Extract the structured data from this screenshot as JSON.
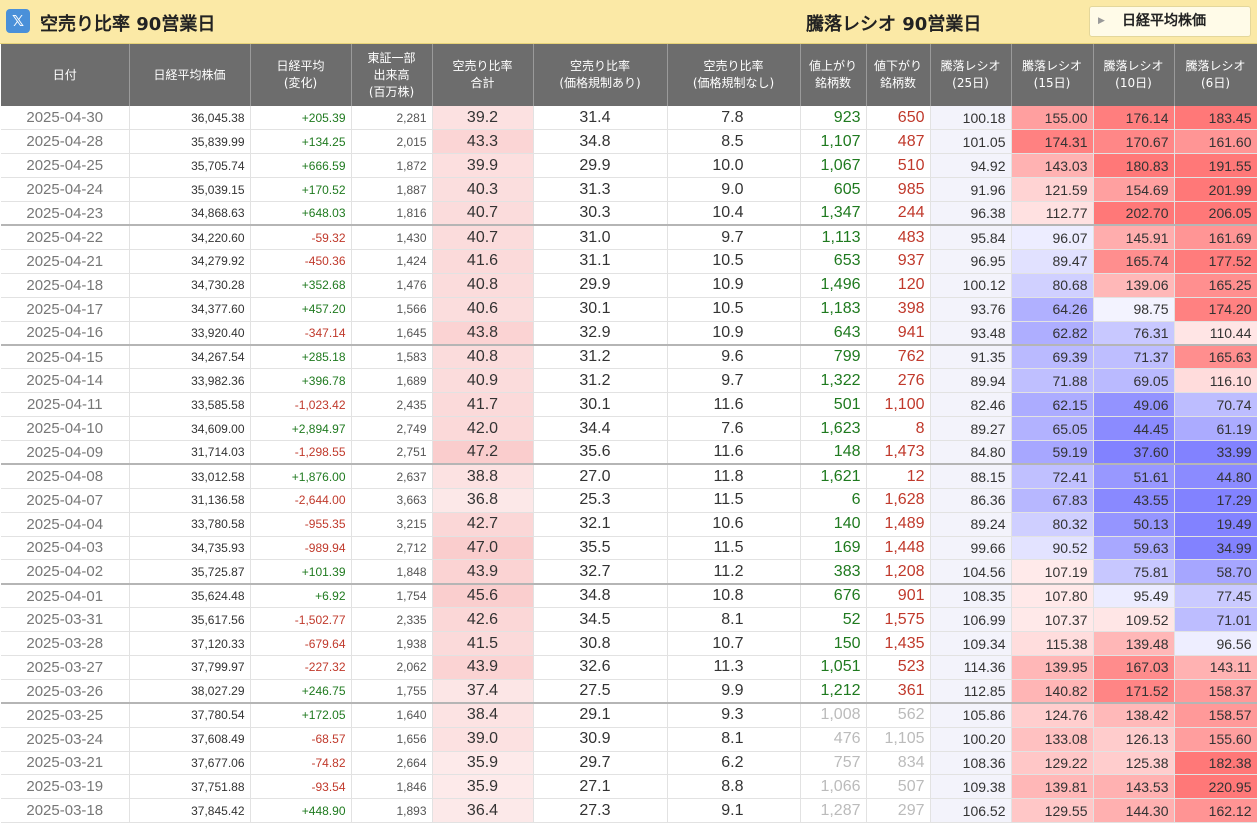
{
  "header": {
    "x_icon": "x-logo-icon",
    "title": "空売り比率 90営業日",
    "right_title": "騰落レシオ 90営業日",
    "nikkei_button": "日経平均株価"
  },
  "columns": [
    "日付",
    "日経平均株価",
    "日経平均\n(変化)",
    "東証一部\n出来高\n(百万株)",
    "空売り比率\n合計",
    "空売り比率\n(価格規制あり)",
    "空売り比率\n(価格規制なし)",
    "値上がり\n銘柄数",
    "値下がり\n銘柄数",
    "騰落レシオ\n(25日)",
    "騰落レシオ\n(15日)",
    "騰落レシオ\n(10日)",
    "騰落レシオ\n(6日)"
  ],
  "rows": [
    {
      "date": "2025-04-30",
      "nikkei": "36,045.38",
      "change": "+205.39",
      "volume": "2,281",
      "total": "39.2",
      "reg": "31.4",
      "noreg": "7.8",
      "adv": "923",
      "dec": "650",
      "r25": "100.18",
      "r15": "155.00",
      "r10": "176.14",
      "r6": "183.45"
    },
    {
      "date": "2025-04-28",
      "nikkei": "35,839.99",
      "change": "+134.25",
      "volume": "2,015",
      "total": "43.3",
      "reg": "34.8",
      "noreg": "8.5",
      "adv": "1,107",
      "dec": "487",
      "r25": "101.05",
      "r15": "174.31",
      "r10": "170.67",
      "r6": "161.60"
    },
    {
      "date": "2025-04-25",
      "nikkei": "35,705.74",
      "change": "+666.59",
      "volume": "1,872",
      "total": "39.9",
      "reg": "29.9",
      "noreg": "10.0",
      "adv": "1,067",
      "dec": "510",
      "r25": "94.92",
      "r15": "143.03",
      "r10": "180.83",
      "r6": "191.55"
    },
    {
      "date": "2025-04-24",
      "nikkei": "35,039.15",
      "change": "+170.52",
      "volume": "1,887",
      "total": "40.3",
      "reg": "31.3",
      "noreg": "9.0",
      "adv": "605",
      "dec": "985",
      "r25": "91.96",
      "r15": "121.59",
      "r10": "154.69",
      "r6": "201.99"
    },
    {
      "date": "2025-04-23",
      "nikkei": "34,868.63",
      "change": "+648.03",
      "volume": "1,816",
      "total": "40.7",
      "reg": "30.3",
      "noreg": "10.4",
      "adv": "1,347",
      "dec": "244",
      "r25": "96.38",
      "r15": "112.77",
      "r10": "202.70",
      "r6": "206.05"
    },
    {
      "date": "2025-04-22",
      "nikkei": "34,220.60",
      "change": "-59.32",
      "volume": "1,430",
      "total": "40.7",
      "reg": "31.0",
      "noreg": "9.7",
      "adv": "1,113",
      "dec": "483",
      "r25": "95.84",
      "r15": "96.07",
      "r10": "145.91",
      "r6": "161.69"
    },
    {
      "date": "2025-04-21",
      "nikkei": "34,279.92",
      "change": "-450.36",
      "volume": "1,424",
      "total": "41.6",
      "reg": "31.1",
      "noreg": "10.5",
      "adv": "653",
      "dec": "937",
      "r25": "96.95",
      "r15": "89.47",
      "r10": "165.74",
      "r6": "177.52"
    },
    {
      "date": "2025-04-18",
      "nikkei": "34,730.28",
      "change": "+352.68",
      "volume": "1,476",
      "total": "40.8",
      "reg": "29.9",
      "noreg": "10.9",
      "adv": "1,496",
      "dec": "120",
      "r25": "100.12",
      "r15": "80.68",
      "r10": "139.06",
      "r6": "165.25"
    },
    {
      "date": "2025-04-17",
      "nikkei": "34,377.60",
      "change": "+457.20",
      "volume": "1,566",
      "total": "40.6",
      "reg": "30.1",
      "noreg": "10.5",
      "adv": "1,183",
      "dec": "398",
      "r25": "93.76",
      "r15": "64.26",
      "r10": "98.75",
      "r6": "174.20"
    },
    {
      "date": "2025-04-16",
      "nikkei": "33,920.40",
      "change": "-347.14",
      "volume": "1,645",
      "total": "43.8",
      "reg": "32.9",
      "noreg": "10.9",
      "adv": "643",
      "dec": "941",
      "r25": "93.48",
      "r15": "62.82",
      "r10": "76.31",
      "r6": "110.44"
    },
    {
      "date": "2025-04-15",
      "nikkei": "34,267.54",
      "change": "+285.18",
      "volume": "1,583",
      "total": "40.8",
      "reg": "31.2",
      "noreg": "9.6",
      "adv": "799",
      "dec": "762",
      "r25": "91.35",
      "r15": "69.39",
      "r10": "71.37",
      "r6": "165.63"
    },
    {
      "date": "2025-04-14",
      "nikkei": "33,982.36",
      "change": "+396.78",
      "volume": "1,689",
      "total": "40.9",
      "reg": "31.2",
      "noreg": "9.7",
      "adv": "1,322",
      "dec": "276",
      "r25": "89.94",
      "r15": "71.88",
      "r10": "69.05",
      "r6": "116.10"
    },
    {
      "date": "2025-04-11",
      "nikkei": "33,585.58",
      "change": "-1,023.42",
      "volume": "2,435",
      "total": "41.7",
      "reg": "30.1",
      "noreg": "11.6",
      "adv": "501",
      "dec": "1,100",
      "r25": "82.46",
      "r15": "62.15",
      "r10": "49.06",
      "r6": "70.74"
    },
    {
      "date": "2025-04-10",
      "nikkei": "34,609.00",
      "change": "+2,894.97",
      "volume": "2,749",
      "total": "42.0",
      "reg": "34.4",
      "noreg": "7.6",
      "adv": "1,623",
      "dec": "8",
      "r25": "89.27",
      "r15": "65.05",
      "r10": "44.45",
      "r6": "61.19"
    },
    {
      "date": "2025-04-09",
      "nikkei": "31,714.03",
      "change": "-1,298.55",
      "volume": "2,751",
      "total": "47.2",
      "reg": "35.6",
      "noreg": "11.6",
      "adv": "148",
      "dec": "1,473",
      "r25": "84.80",
      "r15": "59.19",
      "r10": "37.60",
      "r6": "33.99"
    },
    {
      "date": "2025-04-08",
      "nikkei": "33,012.58",
      "change": "+1,876.00",
      "volume": "2,637",
      "total": "38.8",
      "reg": "27.0",
      "noreg": "11.8",
      "adv": "1,621",
      "dec": "12",
      "r25": "88.15",
      "r15": "72.41",
      "r10": "51.61",
      "r6": "44.80"
    },
    {
      "date": "2025-04-07",
      "nikkei": "31,136.58",
      "change": "-2,644.00",
      "volume": "3,663",
      "total": "36.8",
      "reg": "25.3",
      "noreg": "11.5",
      "adv": "6",
      "dec": "1,628",
      "r25": "86.36",
      "r15": "67.83",
      "r10": "43.55",
      "r6": "17.29"
    },
    {
      "date": "2025-04-04",
      "nikkei": "33,780.58",
      "change": "-955.35",
      "volume": "3,215",
      "total": "42.7",
      "reg": "32.1",
      "noreg": "10.6",
      "adv": "140",
      "dec": "1,489",
      "r25": "89.24",
      "r15": "80.32",
      "r10": "50.13",
      "r6": "19.49"
    },
    {
      "date": "2025-04-03",
      "nikkei": "34,735.93",
      "change": "-989.94",
      "volume": "2,712",
      "total": "47.0",
      "reg": "35.5",
      "noreg": "11.5",
      "adv": "169",
      "dec": "1,448",
      "r25": "99.66",
      "r15": "90.52",
      "r10": "59.63",
      "r6": "34.99"
    },
    {
      "date": "2025-04-02",
      "nikkei": "35,725.87",
      "change": "+101.39",
      "volume": "1,848",
      "total": "43.9",
      "reg": "32.7",
      "noreg": "11.2",
      "adv": "383",
      "dec": "1,208",
      "r25": "104.56",
      "r15": "107.19",
      "r10": "75.81",
      "r6": "58.70"
    },
    {
      "date": "2025-04-01",
      "nikkei": "35,624.48",
      "change": "+6.92",
      "volume": "1,754",
      "total": "45.6",
      "reg": "34.8",
      "noreg": "10.8",
      "adv": "676",
      "dec": "901",
      "r25": "108.35",
      "r15": "107.80",
      "r10": "95.49",
      "r6": "77.45"
    },
    {
      "date": "2025-03-31",
      "nikkei": "35,617.56",
      "change": "-1,502.77",
      "volume": "2,335",
      "total": "42.6",
      "reg": "34.5",
      "noreg": "8.1",
      "adv": "52",
      "dec": "1,575",
      "r25": "106.99",
      "r15": "107.37",
      "r10": "109.52",
      "r6": "71.01"
    },
    {
      "date": "2025-03-28",
      "nikkei": "37,120.33",
      "change": "-679.64",
      "volume": "1,938",
      "total": "41.5",
      "reg": "30.8",
      "noreg": "10.7",
      "adv": "150",
      "dec": "1,435",
      "r25": "109.34",
      "r15": "115.38",
      "r10": "139.48",
      "r6": "96.56"
    },
    {
      "date": "2025-03-27",
      "nikkei": "37,799.97",
      "change": "-227.32",
      "volume": "2,062",
      "total": "43.9",
      "reg": "32.6",
      "noreg": "11.3",
      "adv": "1,051",
      "dec": "523",
      "r25": "114.36",
      "r15": "139.95",
      "r10": "167.03",
      "r6": "143.11"
    },
    {
      "date": "2025-03-26",
      "nikkei": "38,027.29",
      "change": "+246.75",
      "volume": "1,755",
      "total": "37.4",
      "reg": "27.5",
      "noreg": "9.9",
      "adv": "1,212",
      "dec": "361",
      "r25": "112.85",
      "r15": "140.82",
      "r10": "171.52",
      "r6": "158.37"
    },
    {
      "date": "2025-03-25",
      "nikkei": "37,780.54",
      "change": "+172.05",
      "volume": "1,640",
      "total": "38.4",
      "reg": "29.1",
      "noreg": "9.3",
      "adv": "1,008",
      "dec": "562",
      "r25": "105.86",
      "r15": "124.76",
      "r10": "138.42",
      "r6": "158.57"
    },
    {
      "date": "2025-03-24",
      "nikkei": "37,608.49",
      "change": "-68.57",
      "volume": "1,656",
      "total": "39.0",
      "reg": "30.9",
      "noreg": "8.1",
      "adv": "476",
      "dec": "1,105",
      "r25": "100.20",
      "r15": "133.08",
      "r10": "126.13",
      "r6": "155.60"
    },
    {
      "date": "2025-03-21",
      "nikkei": "37,677.06",
      "change": "-74.82",
      "volume": "2,664",
      "total": "35.9",
      "reg": "29.7",
      "noreg": "6.2",
      "adv": "757",
      "dec": "834",
      "r25": "108.36",
      "r15": "129.22",
      "r10": "125.38",
      "r6": "182.38"
    },
    {
      "date": "2025-03-19",
      "nikkei": "37,751.88",
      "change": "-93.54",
      "volume": "1,846",
      "total": "35.9",
      "reg": "27.1",
      "noreg": "8.8",
      "adv": "1,066",
      "dec": "507",
      "r25": "109.38",
      "r15": "139.81",
      "r10": "143.53",
      "r6": "220.95"
    },
    {
      "date": "2025-03-18",
      "nikkei": "37,845.42",
      "change": "+448.90",
      "volume": "1,893",
      "total": "36.4",
      "reg": "27.3",
      "noreg": "9.1",
      "adv": "1,287",
      "dec": "297",
      "r25": "106.52",
      "r15": "129.55",
      "r10": "144.30",
      "r6": "162.12"
    }
  ]
}
